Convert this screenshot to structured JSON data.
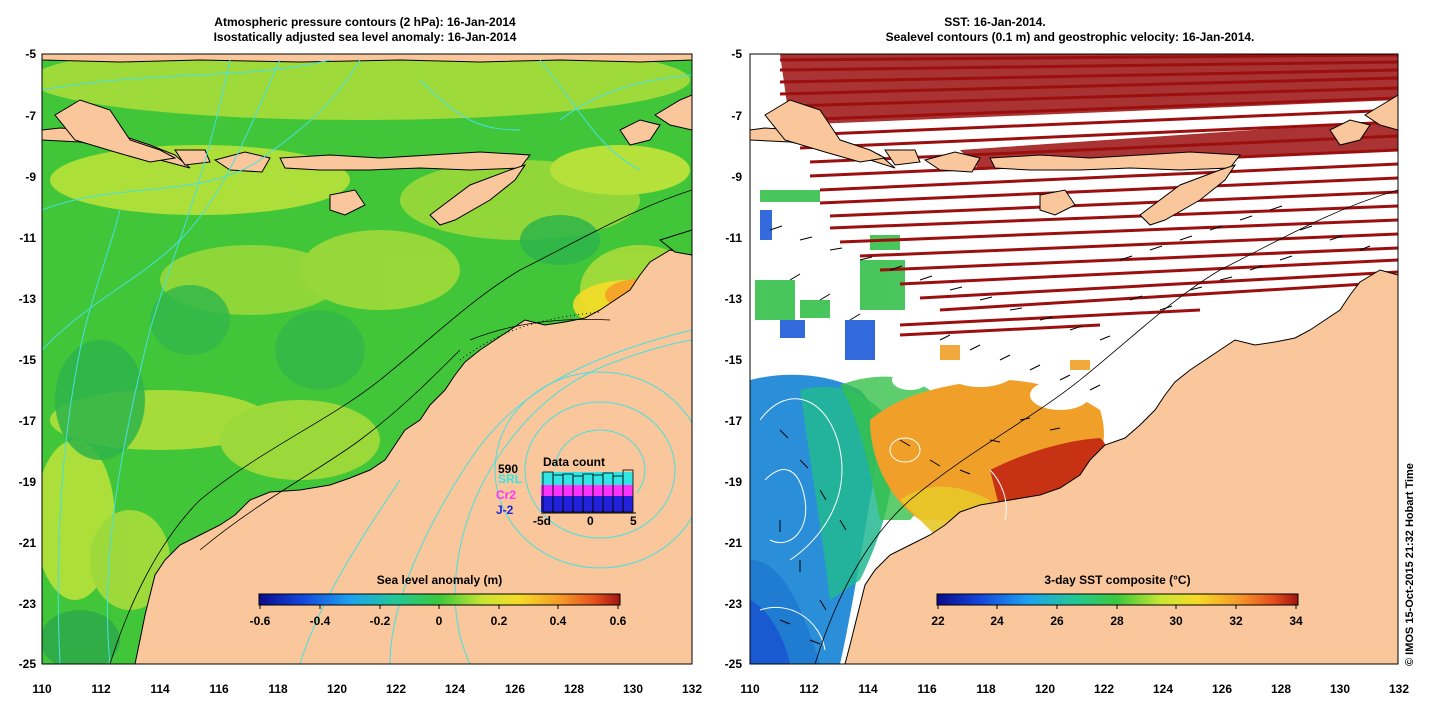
{
  "left_panel": {
    "title_line1": "Atmospheric pressure contours (2 hPa): 16-Jan-2014",
    "title_line2": "Isostatically adjusted sea level anomaly: 16-Jan-2014",
    "y_ticks": [
      "-5",
      "-7",
      "-9",
      "-11",
      "-13",
      "-15",
      "-17",
      "-19",
      "-21",
      "-23",
      "-25"
    ],
    "x_ticks": [
      "110",
      "112",
      "114",
      "116",
      "118",
      "120",
      "122",
      "124",
      "126",
      "128",
      "130",
      "132"
    ],
    "colorbar_title": "Sea level anomaly (m)",
    "colorbar_ticks": [
      "-0.6",
      "-0.4",
      "-0.2",
      "0",
      "0.2",
      "0.4",
      "0.6"
    ],
    "colorbar_range": [
      -0.6,
      0.6
    ],
    "data_count": {
      "title": "Data count",
      "total": "590",
      "series": [
        {
          "name": "SRL",
          "color": "#33e6e6"
        },
        {
          "name": "Cr2",
          "color": "#ff33ff"
        },
        {
          "name": "J-2",
          "color": "#2222dd"
        }
      ],
      "axis_ticks": [
        "-5d",
        "0",
        "5"
      ]
    }
  },
  "right_panel": {
    "title_line1": "SST: 16-Jan-2014.",
    "title_line2": "Sealevel contours (0.1 m) and geostrophic velocity: 16-Jan-2014.",
    "y_ticks": [
      "-5",
      "-7",
      "-9",
      "-11",
      "-13",
      "-15",
      "-17",
      "-19",
      "-21",
      "-23",
      "-25"
    ],
    "x_ticks": [
      "110",
      "112",
      "114",
      "116",
      "118",
      "120",
      "122",
      "124",
      "126",
      "128",
      "130",
      "132"
    ],
    "colorbar_title": "3-day SST composite (°C)",
    "colorbar_ticks": [
      "22",
      "24",
      "26",
      "28",
      "30",
      "32",
      "34"
    ],
    "colorbar_range": [
      22,
      34
    ]
  },
  "footer": "© IMOS 15-Oct-2015 21:32 Hobart Time",
  "colors": {
    "land": "#f9c79b",
    "ocean_green": "#41c63a",
    "ocean_yellow": "#b8e23a",
    "no_data": "#ffffff",
    "contour": "#46e0e0",
    "swath": "#9b0f0f"
  }
}
